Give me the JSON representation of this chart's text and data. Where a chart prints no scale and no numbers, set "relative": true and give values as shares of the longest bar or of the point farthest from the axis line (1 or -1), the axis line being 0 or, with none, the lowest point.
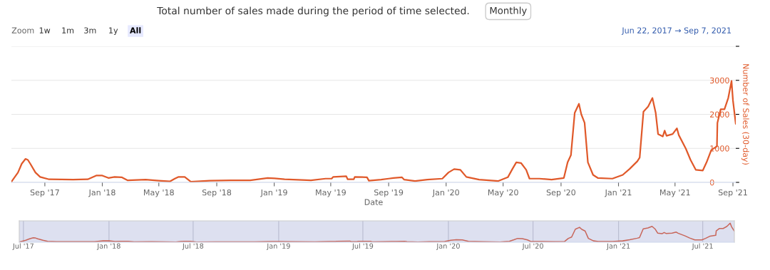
{
  "chart_data": [
    {
      "type": "line",
      "title": "Total number of sales made during the period of time selected.",
      "xlabel": "Date",
      "ylabel": "Number of Sales (30-day)",
      "annotations": [
        "Monthly",
        "Zoom",
        "1w",
        "1m",
        "3m",
        "1y",
        "All",
        "Jun 22, 2017 → Sep 7, 2021"
      ],
      "x": [
        "2017-06-22",
        "2017-07-06",
        "2017-07-14",
        "2017-07-22",
        "2017-07-27",
        "2017-08-01",
        "2017-08-12",
        "2017-08-22",
        "2017-09-10",
        "2017-10-31",
        "2017-12-01",
        "2017-12-19",
        "2018-01-01",
        "2018-01-14",
        "2018-01-27",
        "2018-02-11",
        "2018-02-24",
        "2018-04-03",
        "2018-05-01",
        "2018-05-25",
        "2018-06-04",
        "2018-06-12",
        "2018-06-25",
        "2018-07-08",
        "2018-08-17",
        "2018-10-01",
        "2018-11-11",
        "2018-12-18",
        "2019-01-02",
        "2019-01-23",
        "2019-03-20",
        "2019-04-20",
        "2019-05-03",
        "2019-05-06",
        "2019-06-03",
        "2019-06-06",
        "2019-06-19",
        "2019-06-21",
        "2019-07-17",
        "2019-07-21",
        "2019-08-16",
        "2019-09-01",
        "2019-09-11",
        "2019-09-29",
        "2019-10-04",
        "2019-10-27",
        "2019-11-22",
        "2019-12-24",
        "2020-01-06",
        "2020-01-18",
        "2020-01-31",
        "2020-02-13",
        "2020-03-11",
        "2020-04-21",
        "2020-05-11",
        "2020-05-21",
        "2020-05-29",
        "2020-06-08",
        "2020-06-19",
        "2020-06-26",
        "2020-07-17",
        "2020-08-12",
        "2020-09-07",
        "2020-09-15",
        "2020-09-22",
        "2020-09-30",
        "2020-10-09",
        "2020-10-14",
        "2020-10-21",
        "2020-10-28",
        "2020-11-08",
        "2020-11-18",
        "2020-12-19",
        "2021-01-10",
        "2021-01-25",
        "2021-02-10",
        "2021-02-15",
        "2021-02-23",
        "2021-03-05",
        "2021-03-14",
        "2021-03-21",
        "2021-03-26",
        "2021-04-05",
        "2021-04-09",
        "2021-04-13",
        "2021-04-26",
        "2021-05-05",
        "2021-05-09",
        "2021-05-24",
        "2021-06-03",
        "2021-06-14",
        "2021-06-29",
        "2021-07-07",
        "2021-07-17",
        "2021-07-29",
        "2021-07-30",
        "2021-08-06",
        "2021-08-14",
        "2021-08-22",
        "2021-08-29",
        "2021-09-01",
        "2021-09-07"
      ],
      "series": [
        {
          "color": "#e0592a",
          "values": [
            20,
            290,
            550,
            690,
            660,
            550,
            290,
            160,
            90,
            80,
            90,
            200,
            200,
            130,
            160,
            150,
            60,
            80,
            50,
            30,
            110,
            160,
            160,
            20,
            50,
            60,
            60,
            130,
            120,
            90,
            60,
            110,
            110,
            160,
            180,
            90,
            90,
            160,
            150,
            50,
            80,
            110,
            130,
            150,
            80,
            40,
            80,
            110,
            290,
            390,
            370,
            160,
            80,
            40,
            150,
            400,
            590,
            570,
            370,
            110,
            110,
            80,
            130,
            590,
            800,
            2040,
            2310,
            2000,
            1750,
            590,
            220,
            130,
            110,
            220,
            400,
            620,
            730,
            2080,
            2230,
            2480,
            2040,
            1420,
            1350,
            1520,
            1370,
            1420,
            1590,
            1390,
            990,
            660,
            370,
            350,
            590,
            950,
            1060,
            1750,
            2150,
            2150,
            2480,
            2980,
            2410,
            1720
          ]
        }
      ],
      "xlim": [
        "2017-06-22",
        "2021-09-07"
      ],
      "xticks": [
        {
          "value": "2017-09-01",
          "label": "Sep '17"
        },
        {
          "value": "2018-01-01",
          "label": "Jan '18"
        },
        {
          "value": "2018-05-01",
          "label": "May '18"
        },
        {
          "value": "2018-09-01",
          "label": "Sep '18"
        },
        {
          "value": "2019-01-01",
          "label": "Jan '19"
        },
        {
          "value": "2019-05-01",
          "label": "May '19"
        },
        {
          "value": "2019-09-01",
          "label": "Sep '19"
        },
        {
          "value": "2020-01-01",
          "label": "Jan '20"
        },
        {
          "value": "2020-05-01",
          "label": "May '20"
        },
        {
          "value": "2020-09-01",
          "label": "Sep '20"
        },
        {
          "value": "2021-01-01",
          "label": "Jan '21"
        },
        {
          "value": "2021-05-01",
          "label": "May '21"
        },
        {
          "value": "2021-09-01",
          "label": "Sep '21"
        }
      ],
      "ylim": [
        0,
        4000
      ],
      "yticks": [
        0,
        1000,
        2000,
        3000,
        {
          "value": 4000,
          "label": null
        }
      ],
      "grid": "y",
      "legend": false,
      "marker": "none",
      "line_style": "solid"
    },
    {
      "type": "line",
      "relative": true,
      "x": [
        "2017-06-22",
        "2017-07-06",
        "2017-07-14",
        "2017-07-22",
        "2017-07-27",
        "2017-08-01",
        "2017-08-12",
        "2017-08-22",
        "2017-09-10",
        "2017-10-31",
        "2017-12-01",
        "2017-12-19",
        "2018-01-01",
        "2018-01-14",
        "2018-01-27",
        "2018-02-11",
        "2018-02-24",
        "2018-04-03",
        "2018-05-01",
        "2018-05-25",
        "2018-06-04",
        "2018-06-12",
        "2018-06-25",
        "2018-07-08",
        "2018-08-17",
        "2018-10-01",
        "2018-11-11",
        "2018-12-18",
        "2019-01-02",
        "2019-01-23",
        "2019-03-20",
        "2019-04-20",
        "2019-05-03",
        "2019-05-06",
        "2019-06-03",
        "2019-06-06",
        "2019-06-19",
        "2019-06-21",
        "2019-07-17",
        "2019-07-21",
        "2019-08-16",
        "2019-09-01",
        "2019-09-11",
        "2019-09-29",
        "2019-10-04",
        "2019-10-27",
        "2019-11-22",
        "2019-12-24",
        "2020-01-06",
        "2020-01-18",
        "2020-01-31",
        "2020-02-13",
        "2020-03-11",
        "2020-04-21",
        "2020-05-11",
        "2020-05-21",
        "2020-05-29",
        "2020-06-08",
        "2020-06-19",
        "2020-06-26",
        "2020-07-17",
        "2020-08-12",
        "2020-09-07",
        "2020-09-15",
        "2020-09-22",
        "2020-09-30",
        "2020-10-09",
        "2020-10-14",
        "2020-10-21",
        "2020-10-28",
        "2020-11-08",
        "2020-11-18",
        "2020-12-19",
        "2021-01-10",
        "2021-01-25",
        "2021-02-10",
        "2021-02-15",
        "2021-02-23",
        "2021-03-05",
        "2021-03-14",
        "2021-03-21",
        "2021-03-26",
        "2021-04-05",
        "2021-04-09",
        "2021-04-13",
        "2021-04-26",
        "2021-05-05",
        "2021-05-09",
        "2021-05-24",
        "2021-06-03",
        "2021-06-14",
        "2021-06-29",
        "2021-07-07",
        "2021-07-17",
        "2021-07-29",
        "2021-07-30",
        "2021-08-06",
        "2021-08-14",
        "2021-08-22",
        "2021-08-29",
        "2021-09-01",
        "2021-09-07"
      ],
      "series": [
        {
          "color": "#c8665a",
          "values": [
            0.01,
            0.1,
            0.18,
            0.23,
            0.22,
            0.18,
            0.1,
            0.05,
            0.03,
            0.03,
            0.03,
            0.07,
            0.07,
            0.04,
            0.05,
            0.05,
            0.02,
            0.03,
            0.02,
            0.01,
            0.04,
            0.05,
            0.05,
            0.01,
            0.02,
            0.02,
            0.02,
            0.04,
            0.04,
            0.03,
            0.02,
            0.04,
            0.04,
            0.05,
            0.06,
            0.03,
            0.03,
            0.05,
            0.05,
            0.02,
            0.03,
            0.04,
            0.04,
            0.05,
            0.03,
            0.01,
            0.03,
            0.04,
            0.1,
            0.13,
            0.12,
            0.05,
            0.03,
            0.01,
            0.05,
            0.13,
            0.2,
            0.19,
            0.12,
            0.04,
            0.04,
            0.03,
            0.04,
            0.2,
            0.27,
            0.68,
            0.78,
            0.67,
            0.59,
            0.2,
            0.07,
            0.04,
            0.04,
            0.07,
            0.13,
            0.21,
            0.24,
            0.7,
            0.75,
            0.83,
            0.68,
            0.48,
            0.45,
            0.51,
            0.46,
            0.48,
            0.53,
            0.47,
            0.33,
            0.22,
            0.12,
            0.12,
            0.2,
            0.32,
            0.36,
            0.59,
            0.72,
            0.72,
            0.83,
            1,
            0.81,
            0.58
          ]
        }
      ],
      "xlim": [
        "2017-06-22",
        "2021-09-07"
      ],
      "xticks": [
        {
          "value": "2017-07-01",
          "label": "Jul '17"
        },
        {
          "value": "2018-01-01",
          "label": "Jan '18"
        },
        {
          "value": "2018-07-01",
          "label": "Jul '18"
        },
        {
          "value": "2019-01-01",
          "label": "Jan '19"
        },
        {
          "value": "2019-07-01",
          "label": "Jul '19"
        },
        {
          "value": "2020-01-01",
          "label": "Jan '20"
        },
        {
          "value": "2020-07-01",
          "label": "Jul '20"
        },
        {
          "value": "2021-01-01",
          "label": "Jan '21"
        },
        {
          "value": "2021-07-01",
          "label": "Jul '21"
        }
      ],
      "tick_labels": "x",
      "grid": "x",
      "legend": false
    }
  ]
}
